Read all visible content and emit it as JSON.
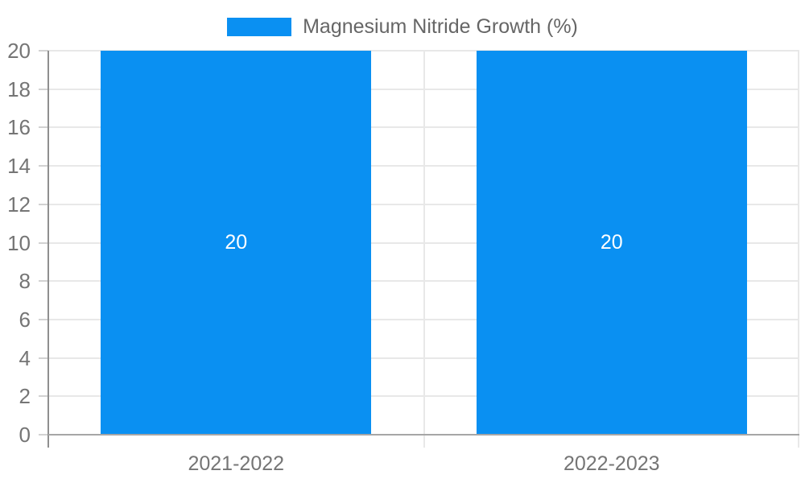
{
  "legend": {
    "label": "Magnesium Nitride Growth (%)"
  },
  "chart_data": {
    "type": "bar",
    "title": "",
    "xlabel": "",
    "ylabel": "",
    "categories": [
      "2021-2022",
      "2022-2023"
    ],
    "series": [
      {
        "name": "Magnesium Nitride Growth (%)",
        "color": "#0a90f2",
        "values": [
          20,
          20
        ],
        "data_labels": [
          "20",
          "20"
        ]
      }
    ],
    "ylim": [
      0,
      20
    ],
    "yticks": [
      0,
      2,
      4,
      6,
      8,
      10,
      12,
      14,
      16,
      18,
      20
    ],
    "grid": true,
    "legend_position": "top"
  },
  "colors": {
    "bar": "#0a90f2",
    "bar_label": "#ffffff",
    "axis_text": "#757575",
    "legend_text": "#666666",
    "grid": "#e8e8e8",
    "axis_line": "#8f8f8f",
    "baseline": "#a6a6a6",
    "tick": "#d2d2d2",
    "background": "#ffffff"
  }
}
